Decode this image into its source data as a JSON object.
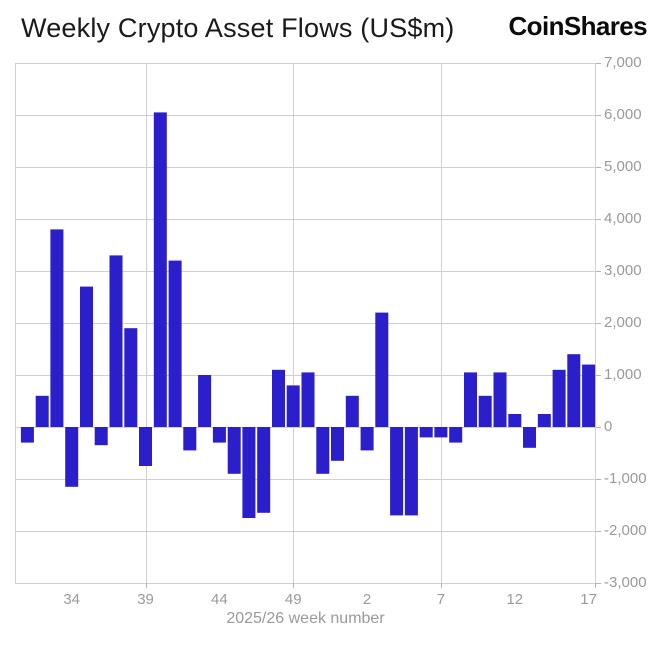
{
  "header": {
    "title": "Weekly Crypto Asset Flows (US$m)",
    "logo_text": "CoinShares"
  },
  "colors": {
    "bar": "#2a1fca",
    "grid": "#d0d0d0",
    "tick": "#b5b5b5",
    "axis_label_text": "#9a9a9a",
    "title_text": "#1a1a1a",
    "logo_text": "#0b0b0b",
    "background": "#ffffff"
  },
  "chart_data": {
    "type": "bar",
    "title": "Weekly Crypto Asset Flows (US$m)",
    "xlabel": "2025/26 week number",
    "ylabel": "",
    "ylim": [
      -3000,
      7000
    ],
    "grid": "on",
    "legend": "none",
    "y_ticks": [
      7000,
      6000,
      5000,
      4000,
      3000,
      2000,
      1000,
      0,
      -1000,
      -2000,
      -3000
    ],
    "y_tick_labels": [
      "7,000",
      "6,000",
      "5,000",
      "4,000",
      "3,000",
      "2,000",
      "1,000",
      "0",
      "-1,000",
      "-2,000",
      "-3,000"
    ],
    "x_tick_labels": [
      "34",
      "39",
      "44",
      "49",
      "2",
      "7",
      "12",
      "17"
    ],
    "x_tick_bar_indices": [
      3,
      8,
      13,
      18,
      23,
      28,
      33,
      38
    ],
    "vertical_gridline_bar_indices": [
      8,
      18,
      28
    ],
    "categories": [
      "31",
      "32",
      "33",
      "34",
      "35",
      "36",
      "37",
      "38",
      "39",
      "40",
      "41",
      "42",
      "43",
      "44",
      "45",
      "46",
      "47",
      "48",
      "49",
      "50",
      "51",
      "52",
      "1",
      "2",
      "3",
      "4",
      "5",
      "6",
      "7",
      "8",
      "9",
      "10",
      "11",
      "12",
      "13",
      "14",
      "15",
      "16",
      "17"
    ],
    "values": [
      -300,
      600,
      3800,
      -1150,
      2700,
      -350,
      3300,
      1900,
      -750,
      6050,
      3200,
      -450,
      1000,
      -300,
      -900,
      -1750,
      -1650,
      1100,
      800,
      1050,
      -900,
      -650,
      600,
      -450,
      2200,
      -1700,
      -1700,
      -200,
      -200,
      -300,
      1050,
      600,
      1050,
      250,
      -400,
      250,
      1100,
      1400,
      1200
    ]
  }
}
